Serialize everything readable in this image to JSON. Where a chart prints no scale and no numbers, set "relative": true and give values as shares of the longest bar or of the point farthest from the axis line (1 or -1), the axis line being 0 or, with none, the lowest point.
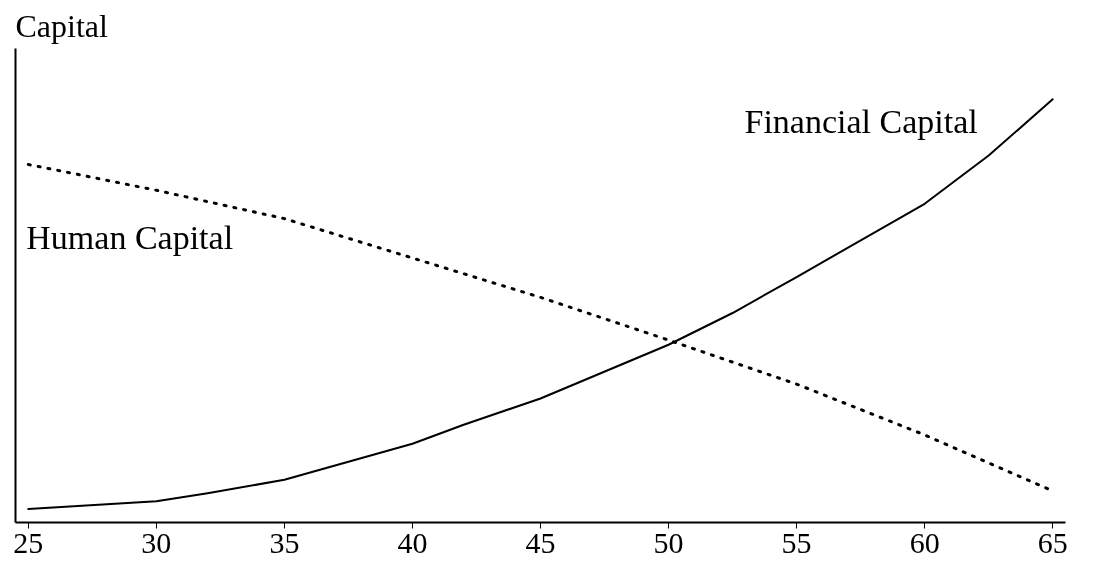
{
  "chart_data": {
    "type": "line",
    "ylabel": "Capital",
    "relative": true,
    "xlim": [
      24.5,
      65.5
    ],
    "xticks": [
      25,
      30,
      35,
      40,
      45,
      50,
      55,
      60,
      65
    ],
    "grid": false,
    "legend": false,
    "marker": "none",
    "series": [
      {
        "name": "Human Capital",
        "color": "#000000",
        "line_style": "dotted",
        "x": [
          25,
          30,
          35,
          40,
          45,
          50,
          55,
          60,
          64.8
        ],
        "values": [
          0.846,
          0.785,
          0.718,
          0.625,
          0.532,
          0.431,
          0.327,
          0.207,
          0.08
        ]
      },
      {
        "name": "Financial Capital",
        "color": "#000000",
        "line_style": "solid",
        "x": [
          25,
          30,
          32,
          35,
          40,
          42,
          45,
          50,
          52.5,
          55,
          60,
          62.5,
          65
        ],
        "values": [
          0.032,
          0.05,
          0.069,
          0.101,
          0.186,
          0.231,
          0.293,
          0.42,
          0.495,
          0.58,
          0.753,
          0.867,
          1
        ]
      }
    ]
  }
}
